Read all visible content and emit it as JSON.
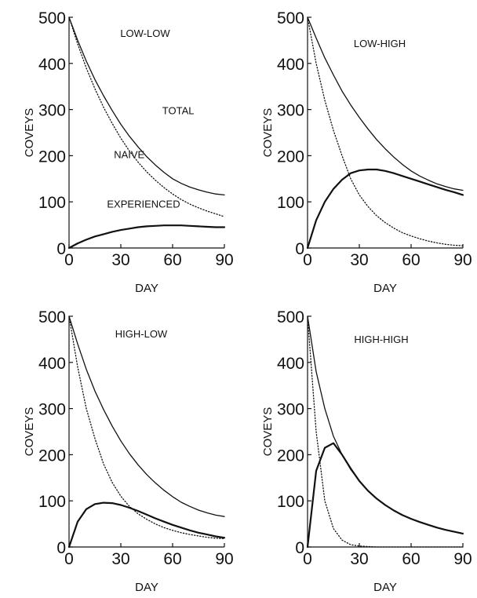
{
  "chart_data": [
    {
      "type": "line",
      "title": "LOW-LOW",
      "xlabel": "DAY",
      "ylabel": "COVEYS",
      "xlim": [
        0,
        90
      ],
      "ylim": [
        0,
        500
      ],
      "xticks": [
        "0",
        "30",
        "60",
        "90"
      ],
      "yticks": [
        "0",
        "100",
        "200",
        "300",
        "400",
        "500"
      ],
      "x": [
        0,
        5,
        10,
        15,
        20,
        25,
        30,
        35,
        40,
        45,
        50,
        55,
        60,
        65,
        70,
        75,
        80,
        85,
        90
      ],
      "series": [
        {
          "name": "TOTAL",
          "style": "solid",
          "values": [
            500,
            450,
            405,
            365,
            330,
            298,
            268,
            242,
            219,
            198,
            180,
            164,
            150,
            140,
            132,
            126,
            121,
            117,
            115
          ]
        },
        {
          "name": "NAIVE",
          "style": "dotted",
          "values": [
            500,
            442,
            390,
            345,
            305,
            270,
            238,
            210,
            186,
            165,
            147,
            131,
            117,
            105,
            95,
            87,
            80,
            74,
            68
          ]
        },
        {
          "name": "EXPERIENCED",
          "style": "solid-thick",
          "values": [
            0,
            10,
            18,
            25,
            30,
            35,
            39,
            42,
            45,
            47,
            48,
            49,
            49,
            49,
            48,
            47,
            46,
            45,
            45
          ]
        }
      ],
      "annotations": [
        {
          "text": "TOTAL",
          "x": 54,
          "y": 290
        },
        {
          "text": "NAIVE",
          "x": 26,
          "y": 195
        },
        {
          "text": "EXPERIENCED",
          "x": 22,
          "y": 88
        }
      ]
    },
    {
      "type": "line",
      "title": "LOW-HIGH",
      "xlabel": "DAY",
      "ylabel": "COVEYS",
      "xlim": [
        0,
        90
      ],
      "ylim": [
        0,
        500
      ],
      "xticks": [
        "0",
        "30",
        "60",
        "90"
      ],
      "yticks": [
        "0",
        "100",
        "200",
        "300",
        "400",
        "500"
      ],
      "x": [
        0,
        5,
        10,
        15,
        20,
        25,
        30,
        35,
        40,
        45,
        50,
        55,
        60,
        65,
        70,
        75,
        80,
        85,
        90
      ],
      "series": [
        {
          "style": "solid",
          "values": [
            500,
            455,
            412,
            375,
            340,
            310,
            283,
            258,
            235,
            215,
            197,
            181,
            167,
            156,
            147,
            139,
            133,
            128,
            125
          ]
        },
        {
          "style": "dotted",
          "values": [
            500,
            400,
            320,
            255,
            200,
            150,
            115,
            90,
            70,
            55,
            43,
            33,
            26,
            20,
            15,
            11,
            8,
            6,
            5
          ]
        },
        {
          "style": "solid-thick",
          "values": [
            0,
            60,
            100,
            128,
            148,
            162,
            168,
            170,
            170,
            167,
            162,
            156,
            150,
            144,
            138,
            132,
            126,
            121,
            115
          ]
        }
      ]
    },
    {
      "type": "line",
      "title": "HIGH-LOW",
      "xlabel": "DAY",
      "ylabel": "COVEYS",
      "xlim": [
        0,
        90
      ],
      "ylim": [
        0,
        500
      ],
      "xticks": [
        "0",
        "30",
        "60",
        "90"
      ],
      "yticks": [
        "0",
        "100",
        "200",
        "300",
        "400",
        "500"
      ],
      "x": [
        0,
        5,
        10,
        15,
        20,
        25,
        30,
        35,
        40,
        45,
        50,
        55,
        60,
        65,
        70,
        75,
        80,
        85,
        90
      ],
      "series": [
        {
          "style": "solid",
          "values": [
            500,
            440,
            385,
            338,
            298,
            262,
            230,
            202,
            178,
            157,
            139,
            123,
            109,
            97,
            88,
            80,
            74,
            69,
            66
          ]
        },
        {
          "style": "dotted",
          "values": [
            500,
            390,
            300,
            235,
            180,
            140,
            110,
            88,
            72,
            60,
            50,
            42,
            36,
            31,
            27,
            24,
            21,
            19,
            18
          ]
        },
        {
          "style": "solid-thick",
          "values": [
            0,
            55,
            82,
            93,
            96,
            95,
            91,
            85,
            78,
            70,
            62,
            55,
            48,
            42,
            36,
            31,
            27,
            23,
            20
          ]
        }
      ]
    },
    {
      "type": "line",
      "title": "HIGH-HIGH",
      "xlabel": "DAY",
      "ylabel": "COVEYS",
      "xlim": [
        0,
        90
      ],
      "ylim": [
        0,
        500
      ],
      "xticks": [
        "0",
        "30",
        "60",
        "90"
      ],
      "yticks": [
        "0",
        "100",
        "200",
        "300",
        "400",
        "500"
      ],
      "x": [
        0,
        5,
        10,
        15,
        20,
        25,
        30,
        35,
        40,
        45,
        50,
        55,
        60,
        65,
        70,
        75,
        80,
        85,
        90
      ],
      "series": [
        {
          "style": "solid",
          "values": [
            500,
            380,
            300,
            240,
            200,
            168,
            143,
            122,
            105,
            91,
            79,
            69,
            61,
            54,
            48,
            42,
            37,
            33,
            29
          ]
        },
        {
          "style": "dotted",
          "values": [
            500,
            250,
            100,
            40,
            15,
            5,
            2,
            1,
            0,
            0,
            0,
            0,
            0,
            0,
            0,
            0,
            0,
            0,
            0
          ]
        },
        {
          "style": "solid-thick",
          "values": [
            0,
            165,
            215,
            225,
            200,
            170,
            143,
            122,
            105,
            91,
            79,
            69,
            61,
            54,
            48,
            42,
            37,
            33,
            29
          ]
        }
      ]
    }
  ]
}
